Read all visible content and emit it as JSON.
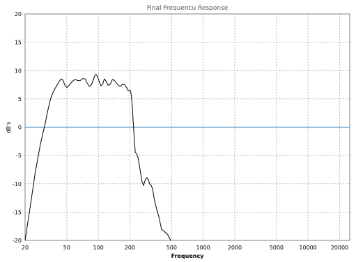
{
  "chart_data": {
    "type": "line",
    "title": "Final Frequencu Response",
    "xlabel": "Frequency",
    "ylabel": "dB's",
    "x_scale": "log",
    "xlim": [
      20,
      25000
    ],
    "ylim": [
      -20,
      20
    ],
    "grid": true,
    "x_ticks": [
      20,
      50,
      100,
      200,
      500,
      1000,
      2000,
      5000,
      10000,
      20000
    ],
    "x_tick_labels": [
      "20",
      "50",
      "100",
      "200",
      "500",
      "1000",
      "2000",
      "5000",
      "10000",
      "20000"
    ],
    "y_ticks": [
      20,
      15,
      10,
      5,
      0,
      -5,
      -10,
      -15,
      -20
    ],
    "y_tick_labels": [
      "20",
      "15",
      "10",
      "5",
      "0",
      "-5",
      "-10",
      "-15",
      "-20"
    ],
    "reference_line": {
      "y": 0,
      "color": "#4a90c8"
    },
    "series": [
      {
        "color": "#000000",
        "x": [
          20,
          22,
          25,
          28,
          31,
          33,
          35,
          37,
          40,
          42,
          44,
          46,
          48,
          50,
          52,
          55,
          58,
          61,
          64,
          68,
          71,
          75,
          78,
          82,
          86,
          90,
          93,
          95,
          98,
          102,
          106,
          110,
          114,
          118,
          124,
          130,
          136,
          142,
          148,
          155,
          162,
          170,
          178,
          186,
          193,
          200,
          205,
          210,
          215,
          220,
          225,
          230,
          240,
          250,
          260,
          270,
          280,
          290,
          300,
          310,
          320,
          330,
          340,
          360,
          380,
          400,
          430,
          460,
          490
        ],
        "y": [
          -20,
          -15,
          -8,
          -3,
          0.5,
          3,
          5,
          6.2,
          7.3,
          8,
          8.5,
          8.3,
          7.4,
          7,
          7.3,
          7.8,
          8.3,
          8.4,
          8.2,
          8.3,
          8.6,
          8.5,
          7.8,
          7.2,
          7.5,
          8.5,
          9.2,
          9.3,
          9,
          8,
          7.3,
          7.6,
          8.5,
          8.2,
          7.4,
          7.6,
          8.4,
          8.3,
          7.8,
          7.4,
          7.2,
          7.6,
          7.5,
          7,
          6.4,
          6.6,
          6,
          4,
          1,
          -2,
          -4.5,
          -4.6,
          -5.5,
          -7.5,
          -9.5,
          -10.3,
          -9.3,
          -8.9,
          -9.3,
          -10.1,
          -10.3,
          -11,
          -12.5,
          -14.5,
          -16,
          -18,
          -18.5,
          -19,
          -20
        ]
      }
    ]
  }
}
